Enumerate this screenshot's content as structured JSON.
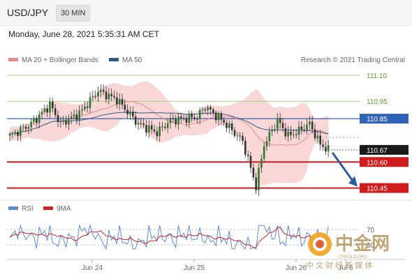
{
  "header": {
    "pair": "USD/JPY",
    "timeframe": "30 MIN"
  },
  "subheader": {
    "datetime": "Monday, June 28, 2021 5:35:31 AM CET"
  },
  "legend": [
    {
      "label": "MA 20 + Bollinger Bands",
      "color": "#e88a8a"
    },
    {
      "label": "MA 50",
      "color": "#2d5a87"
    }
  ],
  "copyright": "Research © 2021 Trading Central",
  "rsi_legend": [
    {
      "label": "RSI",
      "color": "#5b8dd9"
    },
    {
      "label": "9MA",
      "color": "#cc2222"
    }
  ],
  "watermark": {
    "logo_text": "中金网",
    "sub_text": "中 文 财 经 新 媒 体",
    "domain": "CNGOLD.ORG"
  },
  "chart_data": {
    "type": "candlestick",
    "price_ylim": [
      110.4,
      111.14
    ],
    "last_price": 110.67,
    "levels": [
      {
        "value": 111.1,
        "label": "111.10",
        "style": "green-thin"
      },
      {
        "value": 110.95,
        "label": "110.95",
        "style": "green-thin"
      },
      {
        "value": 110.85,
        "label": "110.85",
        "style": "blue"
      },
      {
        "value": 110.6,
        "label": "110.60",
        "style": "red-thick"
      },
      {
        "value": 110.45,
        "label": "110.45",
        "style": "red-thick"
      }
    ],
    "x_ticks": [
      "Jun 24",
      "Jun 25",
      "Jun 26",
      "Jul 6"
    ],
    "rsi": {
      "levels": [
        70,
        30
      ],
      "level_labels": [
        "70",
        "30"
      ],
      "ylim": [
        0,
        100
      ]
    },
    "forecast_target": 110.45,
    "anchors": [
      {
        "x": 0,
        "price": 110.75
      },
      {
        "x": 8,
        "price": 110.82
      },
      {
        "x": 15,
        "price": 110.93
      },
      {
        "x": 19,
        "price": 110.82
      },
      {
        "x": 26,
        "price": 110.88
      },
      {
        "x": 33,
        "price": 111.01
      },
      {
        "x": 40,
        "price": 110.96
      },
      {
        "x": 48,
        "price": 110.82
      },
      {
        "x": 55,
        "price": 110.77
      },
      {
        "x": 60,
        "price": 110.84
      },
      {
        "x": 70,
        "price": 110.86
      },
      {
        "x": 73,
        "price": 110.92
      },
      {
        "x": 80,
        "price": 110.83
      },
      {
        "x": 87,
        "price": 110.72
      },
      {
        "x": 92,
        "price": 110.46
      },
      {
        "x": 95,
        "price": 110.7
      },
      {
        "x": 100,
        "price": 110.84
      },
      {
        "x": 104,
        "price": 110.75
      },
      {
        "x": 108,
        "price": 110.78
      },
      {
        "x": 112,
        "price": 110.82
      },
      {
        "x": 116,
        "price": 110.7
      },
      {
        "x": 119,
        "price": 110.67
      }
    ]
  }
}
